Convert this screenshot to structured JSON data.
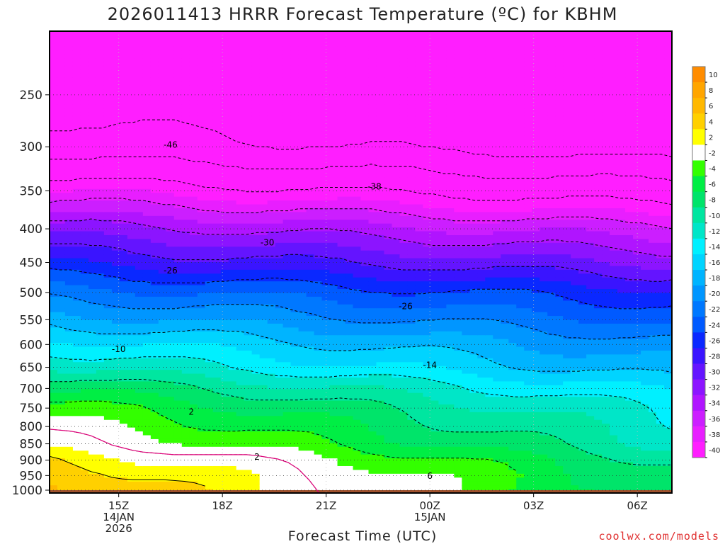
{
  "chart_data": {
    "type": "heatmap",
    "title": "2026011413 HRRR Forecast Temperature (ºC) for KBHM",
    "xlabel": "Forecast Time (UTC)",
    "ylabel": "",
    "x_ticks": [
      {
        "label": "15Z",
        "sub": [
          "14JAN",
          "2026"
        ],
        "hours_from_init": 2
      },
      {
        "label": "18Z",
        "sub": [],
        "hours_from_init": 5
      },
      {
        "label": "21Z",
        "sub": [],
        "hours_from_init": 8
      },
      {
        "label": "00Z",
        "sub": [
          "15JAN"
        ],
        "hours_from_init": 11
      },
      {
        "label": "03Z",
        "sub": [],
        "hours_from_init": 14
      },
      {
        "label": "06Z",
        "sub": [],
        "hours_from_init": 17
      }
    ],
    "xlim_hours": [
      0,
      18
    ],
    "y_ticks": [
      250,
      300,
      350,
      400,
      450,
      500,
      550,
      600,
      650,
      700,
      750,
      800,
      850,
      900,
      950,
      1000
    ],
    "y_scale": "log-pressure (hPa, inverted)",
    "ylim": [
      1010,
      200
    ],
    "colorbar": {
      "labels": [
        "10",
        "8",
        "6",
        "4",
        "2",
        "-2",
        "-4",
        "-6",
        "-8",
        "-10",
        "-12",
        "-14",
        "-16",
        "-18",
        "-20",
        "-22",
        "-24",
        "-26",
        "-28",
        "-30",
        "-32",
        "-34",
        "-36",
        "-38",
        "-40"
      ],
      "colors": [
        "#ff8c00",
        "#ffa500",
        "#ffb800",
        "#ffd000",
        "#ffff00",
        "#ffffff",
        "#33ff00",
        "#00ee44",
        "#00e46a",
        "#00e6a0",
        "#00e6c8",
        "#00f0ff",
        "#00d4ff",
        "#00b4ff",
        "#0096ff",
        "#0078ff",
        "#005aff",
        "#0a28ff",
        "#3a14ff",
        "#6414ff",
        "#8c14ff",
        "#b014ff",
        "#cc1eff",
        "#e81eff",
        "#ff1eff"
      ]
    },
    "contour_labels": [
      {
        "text": "-46",
        "hour": 3.5,
        "pressure": 298
      },
      {
        "text": "-38",
        "hour": 9.4,
        "pressure": 345
      },
      {
        "text": "-30",
        "hour": 6.3,
        "pressure": 420
      },
      {
        "text": "-26",
        "hour": 3.5,
        "pressure": 463
      },
      {
        "text": "-26",
        "hour": 10.3,
        "pressure": 525
      },
      {
        "text": "-10",
        "hour": 2.0,
        "pressure": 610
      },
      {
        "text": "-14",
        "hour": 11.0,
        "pressure": 645
      },
      {
        "text": "2",
        "hour": 4.1,
        "pressure": 760
      },
      {
        "text": "2",
        "hour": 6.0,
        "pressure": 890
      },
      {
        "text": "6",
        "hour": 11.0,
        "pressure": 952
      }
    ],
    "temperature_profile": [
      {
        "pressure": 1000,
        "temp_c": 7
      },
      {
        "pressure": 950,
        "temp_c": 6
      },
      {
        "pressure": 900,
        "temp_c": 4
      },
      {
        "pressure": 850,
        "temp_c": 1
      },
      {
        "pressure": 800,
        "temp_c": -1
      },
      {
        "pressure": 750,
        "temp_c": -3
      },
      {
        "pressure": 700,
        "temp_c": -6
      },
      {
        "pressure": 650,
        "temp_c": -10
      },
      {
        "pressure": 600,
        "temp_c": -13
      },
      {
        "pressure": 550,
        "temp_c": -17
      },
      {
        "pressure": 500,
        "temp_c": -21
      },
      {
        "pressure": 450,
        "temp_c": -26
      },
      {
        "pressure": 400,
        "temp_c": -31
      },
      {
        "pressure": 350,
        "temp_c": -38
      },
      {
        "pressure": 300,
        "temp_c": -46
      },
      {
        "pressure": 250,
        "temp_c": -50
      }
    ],
    "ground_color": "#a0522d",
    "grid": "dotted"
  },
  "credit": "coolwx.com/models"
}
